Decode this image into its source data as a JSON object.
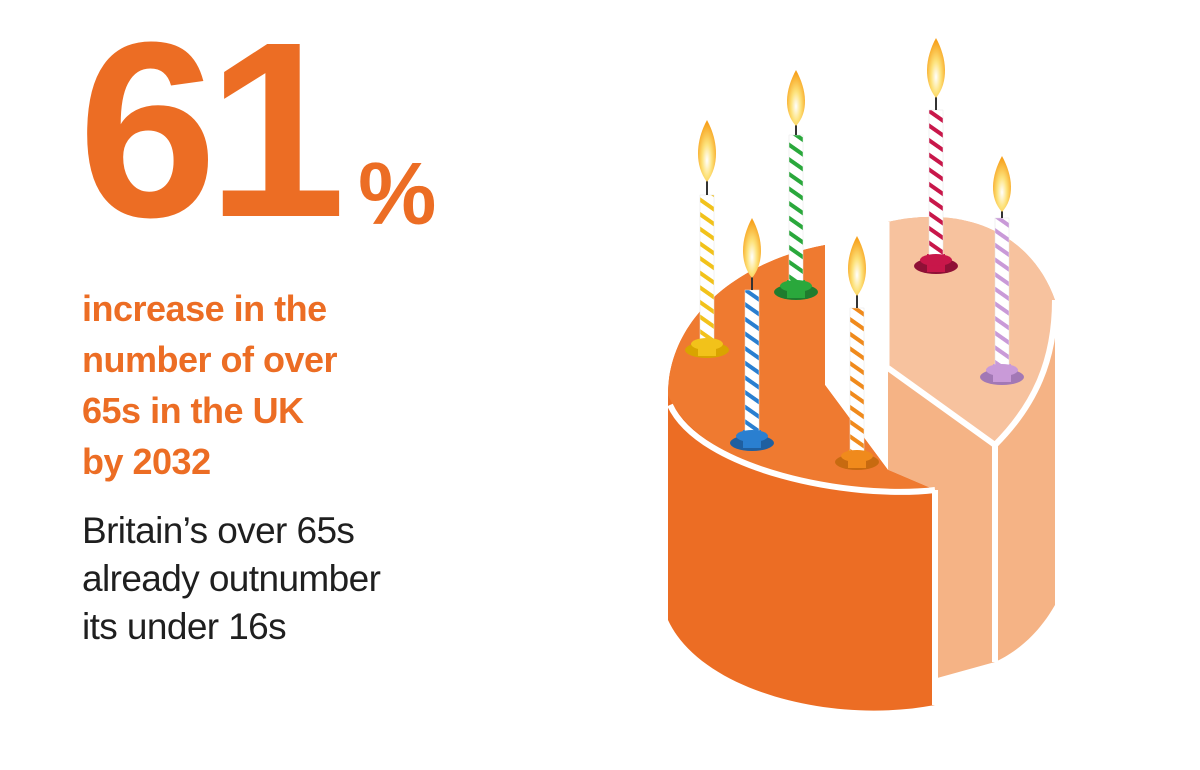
{
  "stat": {
    "number": "61",
    "unit": "%"
  },
  "headline": {
    "lines": [
      "increase in the",
      "number of over",
      "65s in the UK",
      "by 2032"
    ]
  },
  "subline": {
    "lines": [
      "Britain’s over 65s",
      "already outnumber",
      "its under 16s"
    ]
  },
  "colors": {
    "accent": "#ec6d24",
    "cake_dark": "#ec6d24",
    "cake_light": "#f5b385",
    "text": "#1f1f1f",
    "candles": [
      "#f2c21a",
      "#2a7fd0",
      "#2aa83c",
      "#f08a1c",
      "#c8174a",
      "#c99ad8"
    ]
  },
  "illustration": {
    "icon": "birthday-cake-illustration",
    "candle_count": 6
  }
}
